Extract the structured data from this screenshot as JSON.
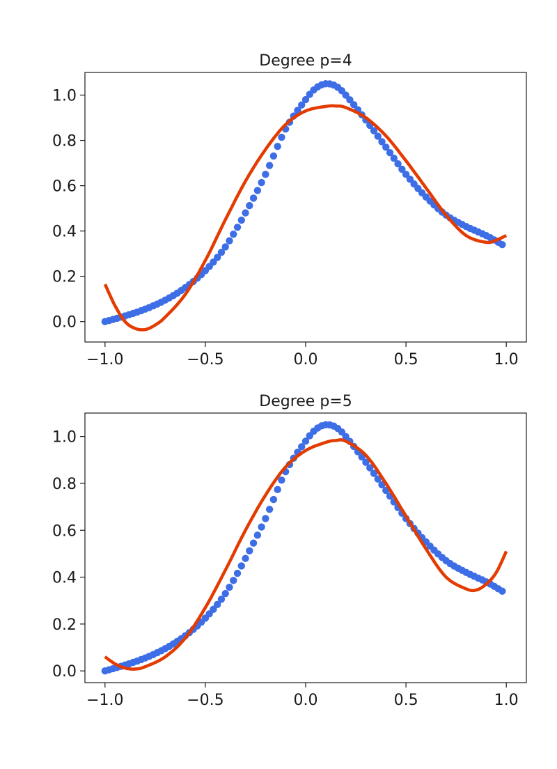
{
  "colors": {
    "points": "#3d6ee6",
    "fit": "#e33b00",
    "axes": "#1a1a1a"
  },
  "chart_data": [
    {
      "type": "scatter",
      "title": "Degree p=4",
      "xlabel": "",
      "ylabel": "",
      "xlim": [
        -1.1,
        1.1
      ],
      "ylim": [
        -0.09,
        1.1
      ],
      "x_ticks": [
        -1.0,
        -0.5,
        0.0,
        0.5,
        1.0
      ],
      "x_tick_labels": [
        "−1.0",
        "−0.5",
        "0.0",
        "0.5",
        "1.0"
      ],
      "y_ticks": [
        0.0,
        0.2,
        0.4,
        0.6,
        0.8,
        1.0
      ],
      "y_tick_labels": [
        "0.0",
        "0.2",
        "0.4",
        "0.6",
        "0.8",
        "1.0"
      ],
      "grid": false,
      "series": [
        {
          "kind": "points",
          "color": "#3d6ee6",
          "x": [
            -1.0,
            -0.9,
            -0.8,
            -0.7,
            -0.6,
            -0.5,
            -0.4,
            -0.3,
            -0.2,
            -0.1,
            0.0,
            0.05,
            0.1,
            0.15,
            0.2,
            0.3,
            0.4,
            0.5,
            0.6,
            0.7,
            0.8,
            0.9,
            0.98
          ],
          "y": [
            0.0,
            0.025,
            0.055,
            0.095,
            0.15,
            0.225,
            0.33,
            0.48,
            0.65,
            0.85,
            0.98,
            1.03,
            1.05,
            1.04,
            1.0,
            0.89,
            0.77,
            0.65,
            0.55,
            0.47,
            0.42,
            0.38,
            0.34
          ]
        },
        {
          "kind": "line",
          "color": "#e33b00",
          "x": [
            -1.0,
            -0.95,
            -0.9,
            -0.85,
            -0.8,
            -0.75,
            -0.7,
            -0.6,
            -0.5,
            -0.4,
            -0.3,
            -0.2,
            -0.1,
            0.0,
            0.1,
            0.15,
            0.2,
            0.3,
            0.4,
            0.5,
            0.6,
            0.7,
            0.8,
            0.9,
            0.95,
            1.0
          ],
          "y": [
            0.165,
            0.07,
            0.0,
            -0.03,
            -0.035,
            -0.015,
            0.02,
            0.12,
            0.27,
            0.45,
            0.62,
            0.76,
            0.87,
            0.93,
            0.95,
            0.952,
            0.945,
            0.9,
            0.82,
            0.71,
            0.59,
            0.47,
            0.38,
            0.35,
            0.36,
            0.38
          ]
        }
      ]
    },
    {
      "type": "scatter",
      "title": "Degree p=5",
      "xlabel": "",
      "ylabel": "",
      "xlim": [
        -1.1,
        1.1
      ],
      "ylim": [
        -0.05,
        1.1
      ],
      "x_ticks": [
        -1.0,
        -0.5,
        0.0,
        0.5,
        1.0
      ],
      "x_tick_labels": [
        "−1.0",
        "−0.5",
        "0.0",
        "0.5",
        "1.0"
      ],
      "y_ticks": [
        0.0,
        0.2,
        0.4,
        0.6,
        0.8,
        1.0
      ],
      "y_tick_labels": [
        "0.0",
        "0.2",
        "0.4",
        "0.6",
        "0.8",
        "1.0"
      ],
      "grid": false,
      "series": [
        {
          "kind": "points",
          "color": "#3d6ee6",
          "x": [
            -1.0,
            -0.9,
            -0.8,
            -0.7,
            -0.6,
            -0.5,
            -0.4,
            -0.3,
            -0.2,
            -0.1,
            0.0,
            0.05,
            0.1,
            0.15,
            0.2,
            0.3,
            0.4,
            0.5,
            0.6,
            0.7,
            0.8,
            0.9,
            0.98
          ],
          "y": [
            0.0,
            0.025,
            0.055,
            0.095,
            0.15,
            0.225,
            0.33,
            0.48,
            0.65,
            0.85,
            0.98,
            1.03,
            1.05,
            1.04,
            1.0,
            0.89,
            0.77,
            0.65,
            0.55,
            0.47,
            0.42,
            0.38,
            0.34
          ]
        },
        {
          "kind": "line",
          "color": "#e33b00",
          "x": [
            -1.0,
            -0.95,
            -0.9,
            -0.85,
            -0.8,
            -0.7,
            -0.6,
            -0.5,
            -0.4,
            -0.3,
            -0.2,
            -0.1,
            0.0,
            0.1,
            0.15,
            0.2,
            0.3,
            0.4,
            0.5,
            0.6,
            0.7,
            0.8,
            0.85,
            0.9,
            0.95,
            1.0
          ],
          "y": [
            0.06,
            0.03,
            0.012,
            0.008,
            0.018,
            0.06,
            0.14,
            0.27,
            0.43,
            0.6,
            0.75,
            0.87,
            0.94,
            0.975,
            0.983,
            0.98,
            0.92,
            0.8,
            0.66,
            0.52,
            0.4,
            0.35,
            0.345,
            0.37,
            0.42,
            0.51
          ]
        }
      ]
    }
  ]
}
